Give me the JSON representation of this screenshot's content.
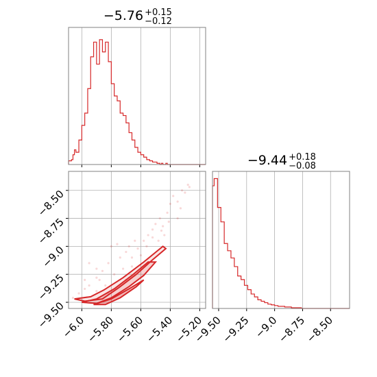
{
  "colors": {
    "series": "#d62728",
    "frame": "#808080",
    "grid": "#b0b0b0"
  },
  "chart_data": [
    {
      "type": "histogram",
      "panel": "top-left",
      "title": {
        "value": "−5.76",
        "plus": "+0.15",
        "minus": "−0.12"
      },
      "xlim": [
        -6.09,
        -5.16
      ],
      "x_ticks": [
        -6.0,
        -5.8,
        -5.6,
        -5.4,
        -5.2
      ],
      "grid": true,
      "bin_edges": [
        -6.09,
        -6.08,
        -6.07,
        -6.06,
        -6.05,
        -6.04,
        -6.03,
        -6.02,
        -6.01,
        -6.0,
        -5.99,
        -5.98,
        -5.97,
        -5.96,
        -5.95,
        -5.94,
        -5.93,
        -5.92,
        -5.91,
        -5.9,
        -5.89,
        -5.88,
        -5.87,
        -5.86,
        -5.85,
        -5.84,
        -5.83,
        -5.82,
        -5.81,
        -5.8,
        -5.79,
        -5.78,
        -5.77,
        -5.76,
        -5.75,
        -5.74,
        -5.73,
        -5.72,
        -5.71,
        -5.7,
        -5.69,
        -5.68,
        -5.67,
        -5.66,
        -5.65,
        -5.64,
        -5.63,
        -5.62,
        -5.61,
        -5.6,
        -5.59,
        -5.58,
        -5.57,
        -5.56,
        -5.55,
        -5.54,
        -5.53,
        -5.52,
        -5.51,
        -5.5,
        -5.49,
        -5.48,
        -5.47,
        -5.46,
        -5.45,
        -5.44,
        -5.43,
        -5.42,
        -5.41,
        -5.4,
        -5.39,
        -5.38,
        -5.37,
        -5.36,
        -5.35,
        -5.34,
        -5.33,
        -5.32,
        -5.31,
        -5.3,
        -5.29,
        -5.28,
        -5.27,
        -5.26,
        -5.25,
        -5.24,
        -5.23,
        -5.22,
        -5.21,
        -5.2,
        -5.19,
        -5.18,
        -5.17,
        -5.16
      ],
      "counts": [
        3,
        3,
        4,
        8,
        12,
        10,
        10,
        20,
        20,
        32,
        32,
        42,
        42,
        62,
        62,
        88,
        88,
        100,
        100,
        82,
        82,
        102,
        102,
        92,
        92,
        100,
        100,
        84,
        84,
        66,
        66,
        56,
        56,
        52,
        52,
        42,
        42,
        40,
        40,
        34,
        34,
        26,
        26,
        20,
        20,
        14,
        14,
        10,
        10,
        8,
        8,
        6,
        6,
        4,
        4,
        3,
        3,
        2,
        2,
        2,
        1,
        1,
        0,
        1,
        0,
        0,
        1,
        0,
        0,
        0,
        0,
        0,
        0,
        0,
        0,
        0,
        0,
        0,
        0,
        0,
        0,
        0,
        0,
        0,
        0,
        0,
        0,
        0,
        0,
        0,
        0,
        0,
        0
      ],
      "ylim": [
        0,
        112
      ]
    },
    {
      "type": "scatter",
      "panel": "bottom-left",
      "xlim": [
        -6.09,
        -5.16
      ],
      "ylim": [
        -9.555,
        -8.33
      ],
      "x_ticks": [
        -6.0,
        -5.8,
        -5.6,
        -5.4,
        -5.2
      ],
      "y_ticks": [
        -9.5,
        -9.25,
        -9.0,
        -8.75,
        -8.5
      ],
      "grid": true,
      "contour_levels": [
        [
          [
            -6.05,
            -9.47
          ],
          [
            -5.98,
            -9.49
          ],
          [
            -5.86,
            -9.47
          ],
          [
            -5.75,
            -9.37
          ],
          [
            -5.63,
            -9.25
          ],
          [
            -5.52,
            -9.12
          ],
          [
            -5.43,
            -9.02
          ],
          [
            -5.45,
            -9.0
          ],
          [
            -5.58,
            -9.14
          ],
          [
            -5.72,
            -9.28
          ],
          [
            -5.85,
            -9.39
          ],
          [
            -5.94,
            -9.45
          ],
          [
            -6.05,
            -9.47
          ]
        ],
        [
          [
            -6.0,
            -9.5
          ],
          [
            -5.9,
            -9.51
          ],
          [
            -5.8,
            -9.46
          ],
          [
            -5.68,
            -9.36
          ],
          [
            -5.58,
            -9.26
          ],
          [
            -5.5,
            -9.14
          ],
          [
            -5.55,
            -9.14
          ],
          [
            -5.66,
            -9.26
          ],
          [
            -5.78,
            -9.38
          ],
          [
            -5.9,
            -9.47
          ],
          [
            -6.0,
            -9.5
          ]
        ],
        [
          [
            -5.92,
            -9.52
          ],
          [
            -5.84,
            -9.52
          ],
          [
            -5.74,
            -9.46
          ],
          [
            -5.63,
            -9.36
          ],
          [
            -5.58,
            -9.3
          ],
          [
            -5.68,
            -9.38
          ],
          [
            -5.8,
            -9.47
          ],
          [
            -5.92,
            -9.52
          ]
        ]
      ],
      "points": [
        [
          -5.98,
          -9.3
        ],
        [
          -5.95,
          -9.35
        ],
        [
          -5.9,
          -9.28
        ],
        [
          -5.86,
          -9.22
        ],
        [
          -5.82,
          -9.15
        ],
        [
          -5.78,
          -9.25
        ],
        [
          -5.74,
          -9.1
        ],
        [
          -5.7,
          -9.05
        ],
        [
          -5.66,
          -9.1
        ],
        [
          -5.62,
          -9.02
        ],
        [
          -5.58,
          -8.95
        ],
        [
          -5.55,
          -8.9
        ],
        [
          -5.52,
          -8.85
        ],
        [
          -5.5,
          -8.8
        ],
        [
          -5.47,
          -8.75
        ],
        [
          -5.45,
          -8.82
        ],
        [
          -5.42,
          -8.7
        ],
        [
          -5.4,
          -8.62
        ],
        [
          -5.38,
          -8.55
        ],
        [
          -5.35,
          -8.6
        ],
        [
          -5.32,
          -8.5
        ],
        [
          -5.3,
          -8.52
        ],
        [
          -5.28,
          -8.45
        ],
        [
          -5.27,
          -8.47
        ],
        [
          -5.9,
          -9.4
        ],
        [
          -5.84,
          -9.35
        ],
        [
          -6.02,
          -9.42
        ],
        [
          -6.06,
          -9.46
        ],
        [
          -5.72,
          -9.2
        ],
        [
          -5.66,
          -9.18
        ],
        [
          -5.6,
          -9.08
        ],
        [
          -5.56,
          -9.0
        ],
        [
          -5.48,
          -8.95
        ],
        [
          -5.44,
          -8.9
        ],
        [
          -5.9,
          -9.2
        ],
        [
          -5.8,
          -9.0
        ],
        [
          -5.76,
          -8.98
        ],
        [
          -5.68,
          -9.0
        ],
        [
          -5.52,
          -8.92
        ],
        [
          -5.64,
          -8.95
        ],
        [
          -5.95,
          -9.15
        ],
        [
          -5.88,
          -9.3
        ],
        [
          -5.35,
          -8.75
        ],
        [
          -5.33,
          -8.66
        ],
        [
          -5.41,
          -8.78
        ],
        [
          -5.46,
          -8.86
        ],
        [
          -5.6,
          -9.2
        ],
        [
          -5.7,
          -9.3
        ],
        [
          -5.82,
          -9.42
        ],
        [
          -5.98,
          -9.38
        ]
      ],
      "series_name": ""
    },
    {
      "type": "histogram",
      "panel": "bottom-right",
      "title": {
        "value": "−9.44",
        "plus": "+0.18",
        "minus": "−0.08"
      },
      "xlim": [
        -9.555,
        -8.33
      ],
      "x_ticks": [
        -9.5,
        -9.25,
        -9.0,
        -8.75,
        -8.5
      ],
      "grid": true,
      "bin_edges": [
        -9.555,
        -9.54,
        -9.525,
        -9.51,
        -9.495,
        -9.48,
        -9.465,
        -9.45,
        -9.435,
        -9.42,
        -9.405,
        -9.39,
        -9.375,
        -9.36,
        -9.345,
        -9.33,
        -9.315,
        -9.3,
        -9.285,
        -9.27,
        -9.255,
        -9.24,
        -9.225,
        -9.21,
        -9.195,
        -9.18,
        -9.165,
        -9.15,
        -9.135,
        -9.12,
        -9.105,
        -9.09,
        -9.075,
        -9.06,
        -9.045,
        -9.03,
        -9.015,
        -9.0,
        -8.985,
        -8.97,
        -8.955,
        -8.94,
        -8.925,
        -8.91,
        -8.895,
        -8.88,
        -8.865,
        -8.85,
        -8.835,
        -8.82,
        -8.805,
        -8.79,
        -8.775,
        -8.76,
        -8.745,
        -8.73,
        -8.715,
        -8.7,
        -8.685,
        -8.67,
        -8.655,
        -8.64,
        -8.625,
        -8.61,
        -8.595,
        -8.58,
        -8.565,
        -8.55,
        -8.535,
        -8.52,
        -8.505,
        -8.49,
        -8.475,
        -8.46,
        -8.445,
        -8.43,
        -8.415,
        -8.4,
        -8.385,
        -8.37,
        -8.355,
        -8.34,
        -8.33
      ],
      "counts": [
        170,
        180,
        180,
        140,
        140,
        120,
        120,
        90,
        90,
        80,
        80,
        70,
        70,
        58,
        58,
        45,
        45,
        40,
        40,
        32,
        32,
        26,
        26,
        20,
        20,
        16,
        16,
        12,
        12,
        10,
        10,
        8,
        8,
        6,
        6,
        5,
        5,
        4,
        4,
        3,
        3,
        3,
        3,
        2,
        2,
        2,
        2,
        1,
        1,
        1,
        1,
        1,
        1,
        0,
        0,
        0,
        0,
        0,
        0,
        0,
        0,
        0,
        0,
        0,
        0,
        0,
        0,
        0,
        0,
        0,
        0,
        0,
        0,
        0,
        0,
        0,
        0,
        0,
        0,
        0,
        0,
        0
      ],
      "ylim": [
        0,
        190
      ]
    }
  ]
}
